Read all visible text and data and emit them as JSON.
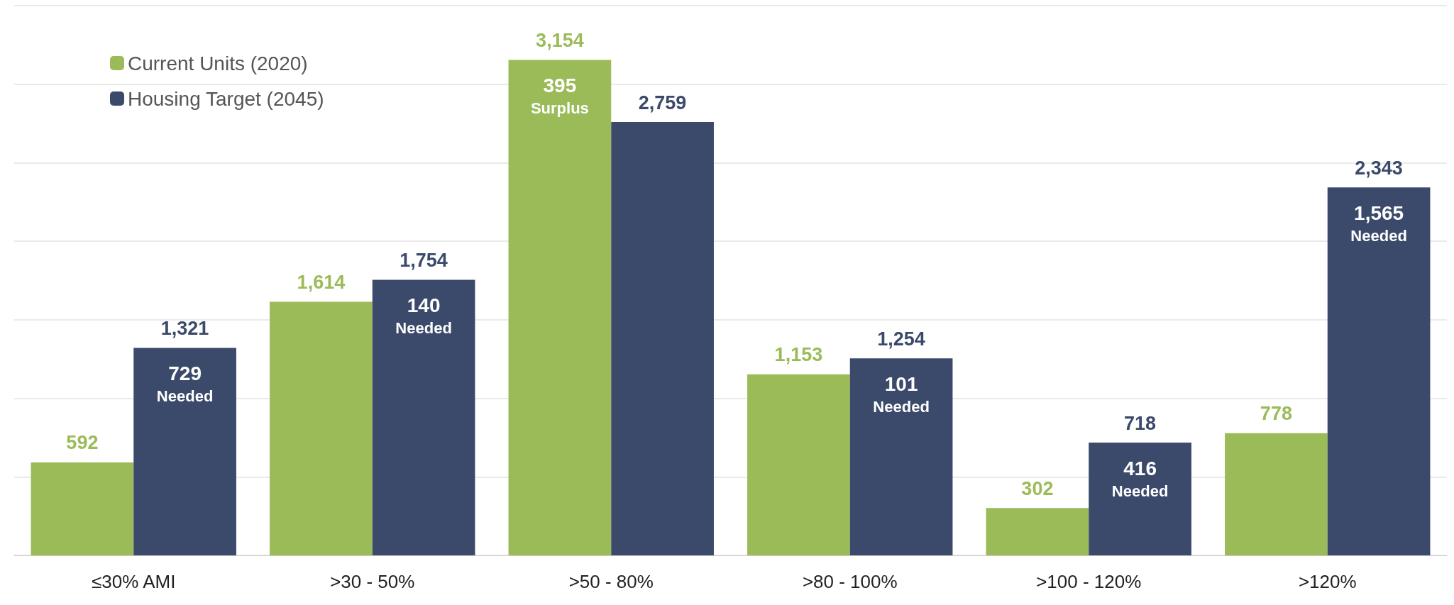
{
  "chart_data": {
    "type": "bar",
    "categories": [
      "≤30% AMI",
      ">30 - 50%",
      ">50 - 80%",
      ">80 - 100%",
      ">100 - 120%",
      ">120%"
    ],
    "series": [
      {
        "name": "Current Units (2020)",
        "color": "#9bbb59",
        "values": [
          592,
          1614,
          3154,
          1153,
          302,
          778
        ],
        "value_labels": [
          "592",
          "1,614",
          "3,154",
          "1,153",
          "302",
          "778"
        ]
      },
      {
        "name": "Housing Target (2045)",
        "color": "#3b4a6b",
        "values": [
          1321,
          1754,
          2759,
          1254,
          718,
          2343
        ],
        "value_labels": [
          "1,321",
          "1,754",
          "2,759",
          "1,254",
          "718",
          "2,343"
        ]
      }
    ],
    "ylim": [
      0,
      3500
    ],
    "yticks": [
      0,
      500,
      1000,
      1500,
      2000,
      2500,
      3000,
      3500
    ],
    "tick_labels": "x",
    "grid": "y",
    "legend": "top left",
    "annotations": [
      {
        "text": "729 Needed",
        "x": "≤30% AMI",
        "y": 1321
      },
      {
        "text": "140 Needed",
        "x": ">30 - 50%",
        "y": 1754
      },
      {
        "text": "395 Surplus",
        "x": ">50 - 80%",
        "y": 3154
      },
      {
        "text": "101 Needed",
        "x": ">80 - 100%",
        "y": 1254
      },
      {
        "text": "416 Needed",
        "x": ">100 - 120%",
        "y": 718
      },
      {
        "text": "1,565 Needed",
        "x": ">120%",
        "y": 2343
      }
    ]
  }
}
